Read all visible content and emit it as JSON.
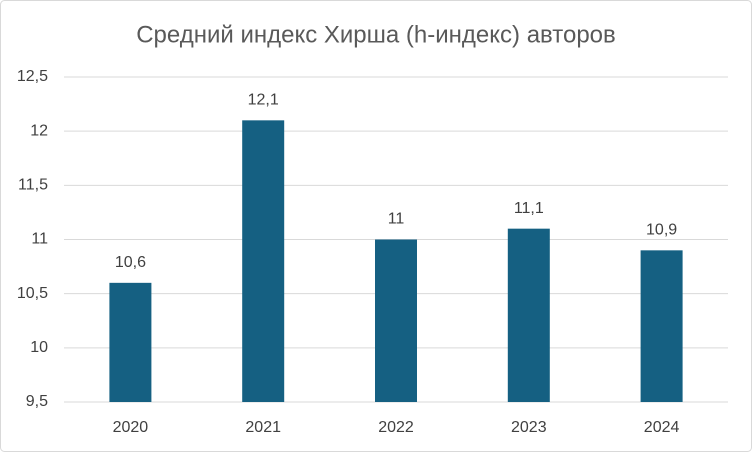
{
  "chart_data": {
    "type": "bar",
    "title": "Средний индекс Хирша (h-индекс) авторов",
    "categories": [
      "2020",
      "2021",
      "2022",
      "2023",
      "2024"
    ],
    "values": [
      10.6,
      12.1,
      11,
      11.1,
      10.9
    ],
    "value_labels": [
      "10,6",
      "12,1",
      "11",
      "11,1",
      "10,9"
    ],
    "color": "#156082",
    "ylim": [
      9.5,
      12.5
    ],
    "yticks": [
      {
        "value": 9.5,
        "label": "9,5"
      },
      10,
      {
        "value": 10.5,
        "label": "10,5"
      },
      11,
      {
        "value": 11.5,
        "label": "11,5"
      },
      12,
      {
        "value": 12.5,
        "label": "12,5"
      }
    ],
    "grid": true
  }
}
